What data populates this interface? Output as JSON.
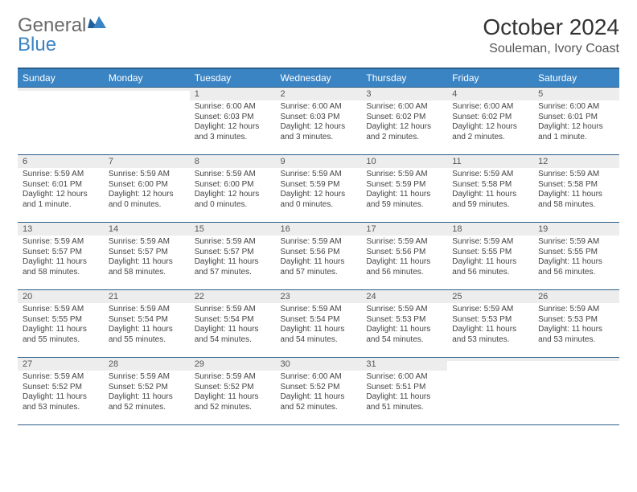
{
  "brand": {
    "part1": "General",
    "part2": "Blue"
  },
  "title": "October 2024",
  "location": "Souleman, Ivory Coast",
  "colors": {
    "header_bg": "#3a84c4",
    "header_border": "#2a5d88",
    "daynum_bg": "#ededed",
    "text": "#333333"
  },
  "dow": [
    "Sunday",
    "Monday",
    "Tuesday",
    "Wednesday",
    "Thursday",
    "Friday",
    "Saturday"
  ],
  "weeks": [
    [
      {
        "n": "",
        "sr": "",
        "ss": "",
        "dl": ""
      },
      {
        "n": "",
        "sr": "",
        "ss": "",
        "dl": ""
      },
      {
        "n": "1",
        "sr": "6:00 AM",
        "ss": "6:03 PM",
        "dl": "12 hours and 3 minutes."
      },
      {
        "n": "2",
        "sr": "6:00 AM",
        "ss": "6:03 PM",
        "dl": "12 hours and 3 minutes."
      },
      {
        "n": "3",
        "sr": "6:00 AM",
        "ss": "6:02 PM",
        "dl": "12 hours and 2 minutes."
      },
      {
        "n": "4",
        "sr": "6:00 AM",
        "ss": "6:02 PM",
        "dl": "12 hours and 2 minutes."
      },
      {
        "n": "5",
        "sr": "6:00 AM",
        "ss": "6:01 PM",
        "dl": "12 hours and 1 minute."
      }
    ],
    [
      {
        "n": "6",
        "sr": "5:59 AM",
        "ss": "6:01 PM",
        "dl": "12 hours and 1 minute."
      },
      {
        "n": "7",
        "sr": "5:59 AM",
        "ss": "6:00 PM",
        "dl": "12 hours and 0 minutes."
      },
      {
        "n": "8",
        "sr": "5:59 AM",
        "ss": "6:00 PM",
        "dl": "12 hours and 0 minutes."
      },
      {
        "n": "9",
        "sr": "5:59 AM",
        "ss": "5:59 PM",
        "dl": "12 hours and 0 minutes."
      },
      {
        "n": "10",
        "sr": "5:59 AM",
        "ss": "5:59 PM",
        "dl": "11 hours and 59 minutes."
      },
      {
        "n": "11",
        "sr": "5:59 AM",
        "ss": "5:58 PM",
        "dl": "11 hours and 59 minutes."
      },
      {
        "n": "12",
        "sr": "5:59 AM",
        "ss": "5:58 PM",
        "dl": "11 hours and 58 minutes."
      }
    ],
    [
      {
        "n": "13",
        "sr": "5:59 AM",
        "ss": "5:57 PM",
        "dl": "11 hours and 58 minutes."
      },
      {
        "n": "14",
        "sr": "5:59 AM",
        "ss": "5:57 PM",
        "dl": "11 hours and 58 minutes."
      },
      {
        "n": "15",
        "sr": "5:59 AM",
        "ss": "5:57 PM",
        "dl": "11 hours and 57 minutes."
      },
      {
        "n": "16",
        "sr": "5:59 AM",
        "ss": "5:56 PM",
        "dl": "11 hours and 57 minutes."
      },
      {
        "n": "17",
        "sr": "5:59 AM",
        "ss": "5:56 PM",
        "dl": "11 hours and 56 minutes."
      },
      {
        "n": "18",
        "sr": "5:59 AM",
        "ss": "5:55 PM",
        "dl": "11 hours and 56 minutes."
      },
      {
        "n": "19",
        "sr": "5:59 AM",
        "ss": "5:55 PM",
        "dl": "11 hours and 56 minutes."
      }
    ],
    [
      {
        "n": "20",
        "sr": "5:59 AM",
        "ss": "5:55 PM",
        "dl": "11 hours and 55 minutes."
      },
      {
        "n": "21",
        "sr": "5:59 AM",
        "ss": "5:54 PM",
        "dl": "11 hours and 55 minutes."
      },
      {
        "n": "22",
        "sr": "5:59 AM",
        "ss": "5:54 PM",
        "dl": "11 hours and 54 minutes."
      },
      {
        "n": "23",
        "sr": "5:59 AM",
        "ss": "5:54 PM",
        "dl": "11 hours and 54 minutes."
      },
      {
        "n": "24",
        "sr": "5:59 AM",
        "ss": "5:53 PM",
        "dl": "11 hours and 54 minutes."
      },
      {
        "n": "25",
        "sr": "5:59 AM",
        "ss": "5:53 PM",
        "dl": "11 hours and 53 minutes."
      },
      {
        "n": "26",
        "sr": "5:59 AM",
        "ss": "5:53 PM",
        "dl": "11 hours and 53 minutes."
      }
    ],
    [
      {
        "n": "27",
        "sr": "5:59 AM",
        "ss": "5:52 PM",
        "dl": "11 hours and 53 minutes."
      },
      {
        "n": "28",
        "sr": "5:59 AM",
        "ss": "5:52 PM",
        "dl": "11 hours and 52 minutes."
      },
      {
        "n": "29",
        "sr": "5:59 AM",
        "ss": "5:52 PM",
        "dl": "11 hours and 52 minutes."
      },
      {
        "n": "30",
        "sr": "6:00 AM",
        "ss": "5:52 PM",
        "dl": "11 hours and 52 minutes."
      },
      {
        "n": "31",
        "sr": "6:00 AM",
        "ss": "5:51 PM",
        "dl": "11 hours and 51 minutes."
      },
      {
        "n": "",
        "sr": "",
        "ss": "",
        "dl": ""
      },
      {
        "n": "",
        "sr": "",
        "ss": "",
        "dl": ""
      }
    ]
  ],
  "labels": {
    "sunrise": "Sunrise: ",
    "sunset": "Sunset: ",
    "daylight": "Daylight: "
  }
}
